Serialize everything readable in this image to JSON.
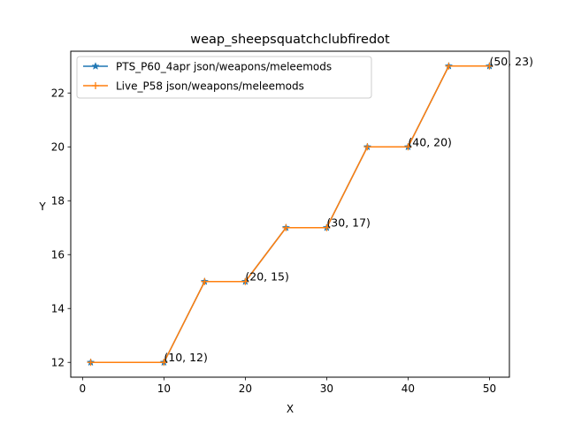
{
  "chart_data": {
    "type": "line",
    "title": "weap_sheepsquatchclubfiredot",
    "xlabel": "X",
    "ylabel": "Y",
    "xlim": [
      -1.45,
      52.45
    ],
    "ylim": [
      11.45,
      23.55
    ],
    "xticks": [
      0,
      10,
      20,
      30,
      40,
      50
    ],
    "yticks": [
      12,
      14,
      16,
      18,
      20,
      22
    ],
    "grid": false,
    "legend": "upper-left",
    "series": [
      {
        "name": "PTS_P60_4apr json/weapons/meleemods",
        "color": "#1f77b4",
        "marker": "star",
        "x": [
          1,
          10,
          15,
          20,
          25,
          30,
          35,
          40,
          45,
          50
        ],
        "y": [
          12,
          12,
          15,
          15,
          17,
          17,
          20,
          20,
          23,
          23
        ]
      },
      {
        "name": "Live_P58 json/weapons/meleemods",
        "color": "#ff7f0e",
        "marker": "plus",
        "x": [
          1,
          10,
          15,
          20,
          25,
          30,
          35,
          40,
          45,
          50
        ],
        "y": [
          12,
          12,
          15,
          15,
          17,
          17,
          20,
          20,
          23,
          23
        ]
      }
    ],
    "annotations": [
      {
        "text": "(10, 12)",
        "x": 10,
        "y": 12
      },
      {
        "text": "(20, 15)",
        "x": 20,
        "y": 15
      },
      {
        "text": "(30, 17)",
        "x": 30,
        "y": 17
      },
      {
        "text": "(40, 20)",
        "x": 40,
        "y": 20
      },
      {
        "text": "(50, 23)",
        "x": 50,
        "y": 23
      }
    ]
  }
}
